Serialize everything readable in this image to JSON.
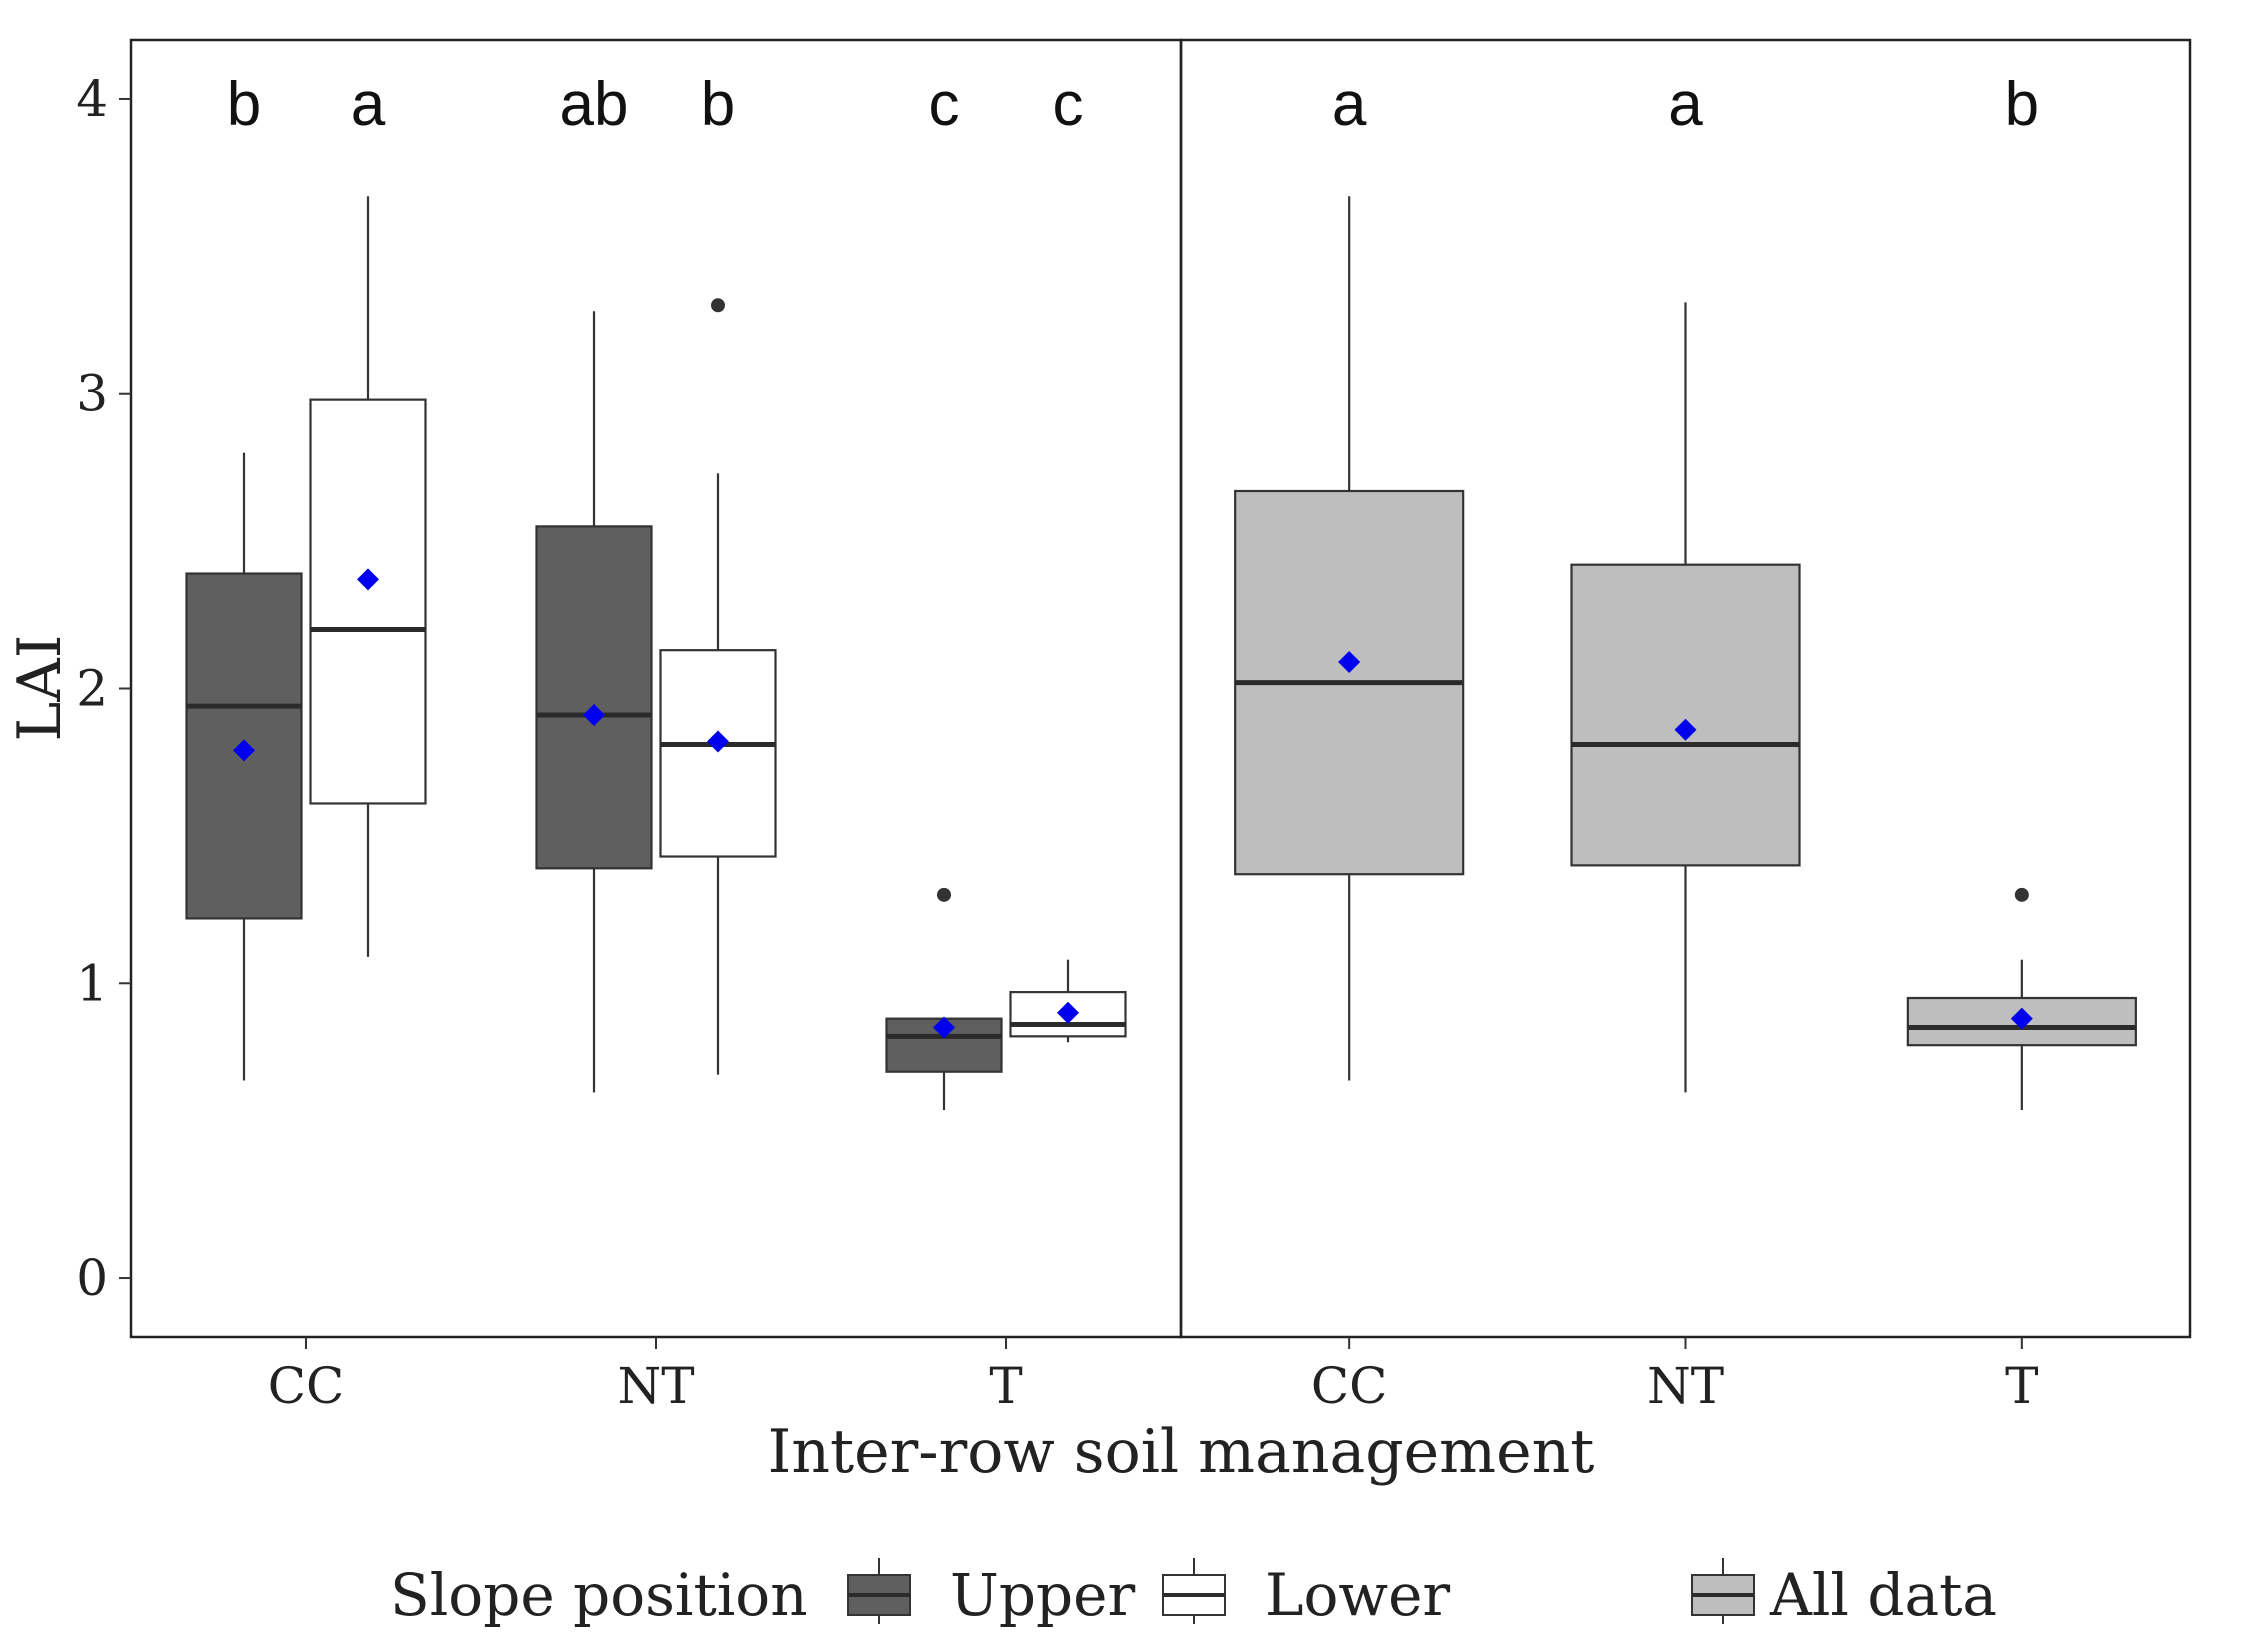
{
  "colors": {
    "upper": "#5f5f5f",
    "lower": "#ffffff",
    "all": "#bebebe",
    "outline": "#333333",
    "mean": "#0000ee",
    "outlier": "#333333"
  },
  "chart_data": {
    "type": "boxplot",
    "ylabel": "LAI",
    "xlabel": "Inter-row soil management",
    "ylim": [
      -0.2,
      4.2
    ],
    "yticks": [
      0,
      1,
      2,
      3,
      4
    ],
    "legend": {
      "title": "Slope position",
      "position": "bottom",
      "entries": [
        {
          "key": "upper",
          "label": "Upper"
        },
        {
          "key": "lower",
          "label": "Lower"
        },
        {
          "key": "all",
          "label": "All data"
        }
      ]
    },
    "panels": [
      {
        "name": "by-slope-position",
        "categories": [
          "CC",
          "NT",
          "T"
        ],
        "series": [
          {
            "name": "Upper",
            "key": "upper",
            "boxes": [
              {
                "category": "CC",
                "whisker_low": 0.67,
                "q1": 1.22,
                "median": 1.94,
                "q3": 2.39,
                "whisker_high": 2.8,
                "mean": 1.79,
                "outliers": [],
                "letter": "b"
              },
              {
                "category": "NT",
                "whisker_low": 0.63,
                "q1": 1.39,
                "median": 1.91,
                "q3": 2.55,
                "whisker_high": 3.28,
                "mean": 1.91,
                "outliers": [],
                "letter": "ab"
              },
              {
                "category": "T",
                "whisker_low": 0.57,
                "q1": 0.7,
                "median": 0.82,
                "q3": 0.88,
                "whisker_high": 0.88,
                "mean": 0.85,
                "outliers": [
                  1.3
                ],
                "letter": "c"
              }
            ]
          },
          {
            "name": "Lower",
            "key": "lower",
            "boxes": [
              {
                "category": "CC",
                "whisker_low": 1.09,
                "q1": 1.61,
                "median": 2.2,
                "q3": 2.98,
                "whisker_high": 3.67,
                "mean": 2.37,
                "outliers": [],
                "letter": "a"
              },
              {
                "category": "NT",
                "whisker_low": 0.69,
                "q1": 1.43,
                "median": 1.81,
                "q3": 2.13,
                "whisker_high": 2.73,
                "mean": 1.82,
                "outliers": [
                  3.3
                ],
                "letter": "b"
              },
              {
                "category": "T",
                "whisker_low": 0.8,
                "q1": 0.82,
                "median": 0.86,
                "q3": 0.97,
                "whisker_high": 1.08,
                "mean": 0.9,
                "outliers": [],
                "letter": "c"
              }
            ]
          }
        ]
      },
      {
        "name": "all-data",
        "categories": [
          "CC",
          "NT",
          "T"
        ],
        "series": [
          {
            "name": "All data",
            "key": "all",
            "boxes": [
              {
                "category": "CC",
                "whisker_low": 0.67,
                "q1": 1.37,
                "median": 2.02,
                "q3": 2.67,
                "whisker_high": 3.67,
                "mean": 2.09,
                "outliers": [],
                "letter": "a"
              },
              {
                "category": "NT",
                "whisker_low": 0.63,
                "q1": 1.4,
                "median": 1.81,
                "q3": 2.42,
                "whisker_high": 3.31,
                "mean": 1.86,
                "outliers": [],
                "letter": "a"
              },
              {
                "category": "T",
                "whisker_low": 0.57,
                "q1": 0.79,
                "median": 0.85,
                "q3": 0.95,
                "whisker_high": 1.08,
                "mean": 0.88,
                "outliers": [
                  1.3
                ],
                "letter": "b"
              }
            ]
          }
        ]
      }
    ]
  }
}
